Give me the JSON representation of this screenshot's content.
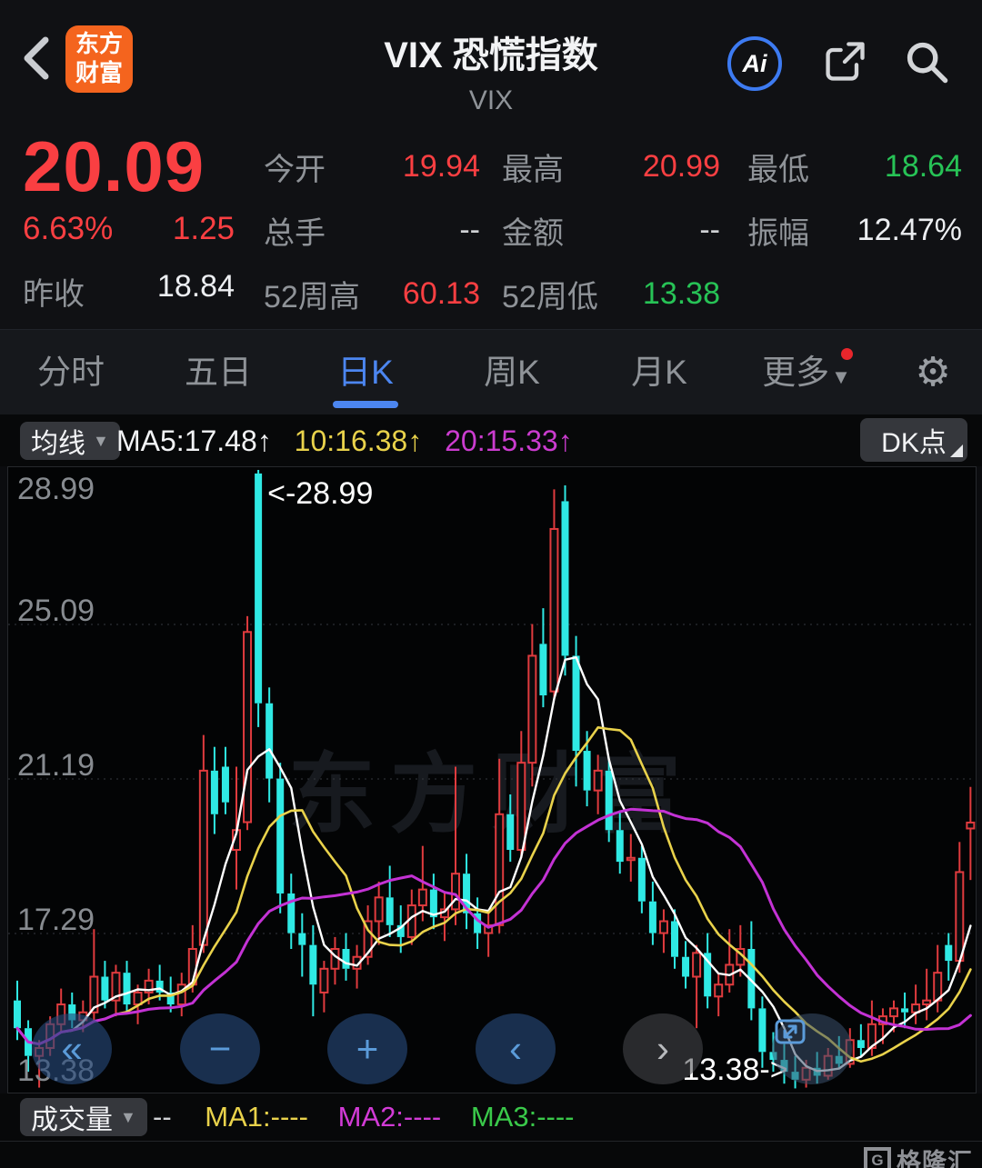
{
  "header": {
    "title": "VIX 恐慌指数",
    "subtitle": "VIX",
    "logo_line1": "东方",
    "logo_line2": "财富",
    "ai_label": "Ai"
  },
  "quote": {
    "price": "20.09",
    "change_pct": "6.63%",
    "change_abs": "1.25",
    "prev_close_label": "昨收",
    "prev_close": "18.84",
    "col2": [
      {
        "label": "今开",
        "value": "19.94"
      },
      {
        "label": "总手",
        "value": "--"
      },
      {
        "label": "52周高",
        "value": "60.13"
      }
    ],
    "col3": [
      {
        "label": "最高",
        "value": "20.99"
      },
      {
        "label": "金额",
        "value": "--"
      },
      {
        "label": "52周低",
        "value": "13.38"
      }
    ],
    "col4": [
      {
        "label": "最低",
        "value": "18.64"
      },
      {
        "label": "振幅",
        "value": "12.47%"
      }
    ]
  },
  "tabs": {
    "items": [
      {
        "label": "分时"
      },
      {
        "label": "五日"
      },
      {
        "label": "日K"
      },
      {
        "label": "周K"
      },
      {
        "label": "月K"
      },
      {
        "label": "更多"
      }
    ],
    "active_index": 2,
    "more_caret": "▼"
  },
  "indicator_bar": {
    "selector_label": "均线",
    "selector_caret": "▼",
    "ma5_text": "MA5:17.48↑",
    "ma10_text": "10:16.38↑",
    "ma20_text": "20:15.33↑",
    "dk_label": "DK点"
  },
  "nav_buttons": {
    "rewind": "«",
    "zoom_out": "−",
    "zoom_in": "+",
    "prev": "‹",
    "next": "›"
  },
  "volume_bar": {
    "selector_label": "成交量",
    "selector_caret": "▼",
    "value": "--",
    "ma1_text": "MA1:----",
    "ma2_text": "MA2:----",
    "ma3_text": "MA3:----"
  },
  "watermark_text": "东方财富",
  "brand": {
    "logo_letter": "G",
    "name": "格隆汇"
  },
  "chart_data": {
    "type": "candlestick",
    "title": "VIX 日K",
    "y_axis": {
      "max": 28.99,
      "min": 13.38,
      "ticks": [
        "28.99",
        "25.09",
        "21.19",
        "17.29",
        "13.38"
      ],
      "gridlines": [
        25.09,
        21.19,
        17.29
      ]
    },
    "colors": {
      "up": "#e03b3e",
      "down": "#2fe9e4",
      "ma5": "#ffffff",
      "ma10": "#e9d24b",
      "ma20": "#c332d4"
    },
    "annotations": {
      "high": {
        "label": "<-28.99",
        "index": 22,
        "value": 28.99
      },
      "low": {
        "label": "13.38->",
        "index": 71,
        "value": 13.38
      }
    },
    "ma_periods": [
      5,
      10,
      20
    ],
    "candles": [
      [
        15.6,
        16.1,
        14.6,
        14.9
      ],
      [
        14.9,
        15.1,
        13.8,
        14.2
      ],
      [
        14.2,
        14.6,
        13.4,
        14.4
      ],
      [
        14.4,
        15.2,
        14.2,
        15.0
      ],
      [
        15.0,
        15.9,
        14.8,
        15.5
      ],
      [
        15.5,
        15.8,
        14.9,
        15.1
      ],
      [
        15.1,
        15.6,
        14.8,
        15.3
      ],
      [
        15.3,
        17.4,
        15.1,
        16.2
      ],
      [
        16.2,
        16.6,
        15.4,
        15.6
      ],
      [
        15.6,
        16.5,
        15.2,
        16.3
      ],
      [
        16.3,
        16.6,
        15.3,
        15.5
      ],
      [
        15.5,
        16.0,
        15.0,
        15.8
      ],
      [
        15.8,
        16.4,
        15.5,
        16.1
      ],
      [
        16.1,
        16.5,
        15.6,
        15.8
      ],
      [
        15.8,
        16.2,
        15.3,
        15.5
      ],
      [
        15.5,
        16.3,
        15.2,
        16.0
      ],
      [
        16.0,
        17.5,
        15.8,
        16.9
      ],
      [
        17.0,
        22.3,
        16.8,
        21.4
      ],
      [
        21.4,
        22.0,
        19.8,
        20.3
      ],
      [
        21.5,
        22.0,
        20.3,
        20.6
      ],
      [
        19.4,
        21.5,
        18.4,
        19.9
      ],
      [
        20.1,
        25.3,
        19.9,
        24.9
      ],
      [
        28.9,
        28.99,
        22.5,
        23.1
      ],
      [
        23.1,
        23.5,
        20.6,
        21.2
      ],
      [
        21.2,
        21.6,
        17.8,
        18.3
      ],
      [
        18.3,
        18.8,
        16.9,
        17.3
      ],
      [
        17.3,
        17.8,
        16.2,
        17.0
      ],
      [
        17.0,
        17.5,
        15.2,
        16.0
      ],
      [
        15.8,
        16.6,
        15.3,
        16.4
      ],
      [
        16.4,
        17.2,
        16.0,
        16.9
      ],
      [
        16.9,
        17.3,
        16.1,
        16.4
      ],
      [
        16.4,
        17.0,
        15.9,
        16.7
      ],
      [
        16.7,
        18.0,
        16.5,
        17.6
      ],
      [
        17.6,
        18.6,
        17.0,
        18.2
      ],
      [
        18.2,
        19.0,
        17.2,
        17.5
      ],
      [
        17.5,
        18.0,
        16.8,
        17.2
      ],
      [
        17.2,
        18.4,
        17.0,
        18.0
      ],
      [
        18.0,
        19.5,
        17.6,
        18.4
      ],
      [
        18.4,
        18.8,
        17.4,
        17.7
      ],
      [
        17.7,
        18.3,
        17.1,
        17.9
      ],
      [
        17.9,
        21.5,
        17.5,
        18.8
      ],
      [
        18.8,
        19.3,
        17.4,
        17.8
      ],
      [
        17.8,
        18.2,
        16.9,
        17.3
      ],
      [
        17.3,
        17.8,
        16.7,
        17.5
      ],
      [
        17.5,
        21.7,
        17.3,
        20.3
      ],
      [
        20.3,
        20.8,
        19.1,
        19.4
      ],
      [
        19.4,
        22.4,
        19.2,
        21.6
      ],
      [
        21.6,
        25.1,
        21.0,
        24.3
      ],
      [
        24.6,
        25.5,
        23.0,
        23.3
      ],
      [
        23.4,
        28.5,
        23.2,
        27.5
      ],
      [
        28.2,
        28.6,
        23.8,
        24.3
      ],
      [
        24.3,
        24.8,
        21.0,
        21.9
      ],
      [
        21.9,
        22.4,
        20.5,
        20.9
      ],
      [
        20.9,
        21.8,
        20.3,
        21.4
      ],
      [
        21.4,
        21.7,
        19.6,
        19.9
      ],
      [
        19.9,
        20.4,
        18.8,
        19.1
      ],
      [
        19.2,
        19.8,
        18.6,
        19.2
      ],
      [
        19.2,
        19.5,
        17.8,
        18.1
      ],
      [
        18.1,
        18.6,
        17.0,
        17.3
      ],
      [
        17.3,
        17.9,
        16.8,
        17.6
      ],
      [
        17.6,
        17.9,
        16.4,
        16.7
      ],
      [
        16.7,
        17.1,
        15.9,
        16.2
      ],
      [
        16.2,
        17.0,
        14.9,
        16.8
      ],
      [
        16.8,
        17.3,
        15.4,
        15.7
      ],
      [
        15.7,
        16.3,
        15.2,
        16.0
      ],
      [
        16.0,
        17.4,
        15.8,
        16.5
      ],
      [
        16.5,
        17.5,
        16.2,
        16.9
      ],
      [
        16.9,
        17.6,
        15.1,
        15.4
      ],
      [
        15.4,
        15.7,
        13.9,
        14.3
      ],
      [
        14.3,
        14.8,
        13.8,
        14.1
      ],
      [
        14.1,
        14.5,
        13.5,
        13.8
      ],
      [
        13.8,
        14.2,
        13.38,
        13.6
      ],
      [
        13.6,
        14.1,
        13.4,
        13.9
      ],
      [
        13.9,
        14.3,
        13.5,
        13.7
      ],
      [
        13.7,
        14.4,
        13.6,
        14.2
      ],
      [
        14.2,
        14.7,
        13.9,
        14.0
      ],
      [
        14.0,
        14.9,
        13.9,
        14.6
      ],
      [
        14.6,
        15.0,
        14.2,
        14.4
      ],
      [
        14.4,
        15.6,
        14.2,
        15.0
      ],
      [
        15.0,
        15.4,
        14.5,
        15.2
      ],
      [
        15.2,
        15.6,
        14.8,
        15.4
      ],
      [
        15.4,
        15.8,
        14.9,
        15.3
      ],
      [
        15.3,
        16.0,
        15.0,
        15.5
      ],
      [
        15.5,
        16.4,
        15.1,
        15.6
      ],
      [
        15.6,
        17.0,
        15.3,
        16.3
      ],
      [
        17.0,
        17.3,
        16.1,
        16.6
      ],
      [
        16.6,
        19.6,
        16.3,
        18.84
      ],
      [
        19.94,
        20.99,
        18.64,
        20.09
      ]
    ]
  }
}
